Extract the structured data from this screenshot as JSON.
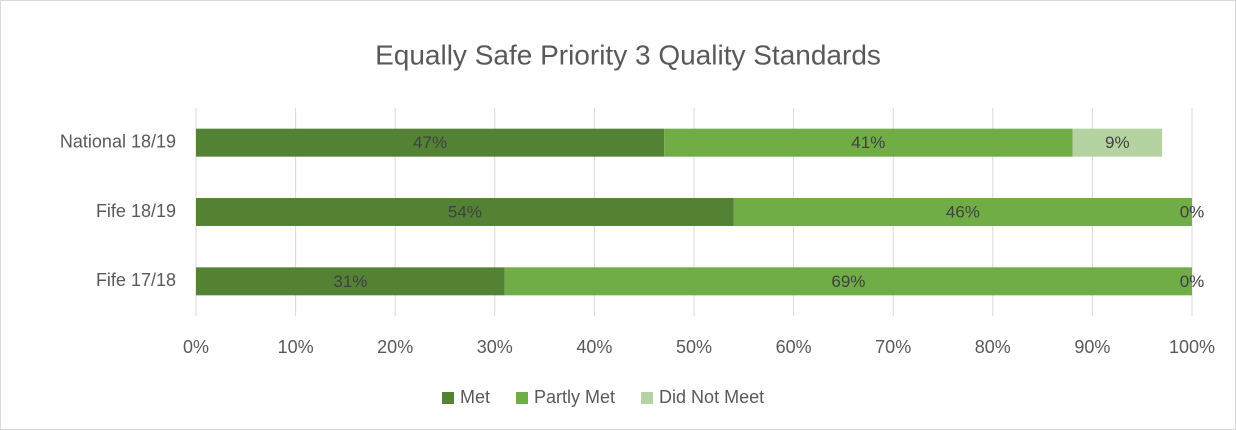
{
  "chart_data": {
    "type": "stacked-bar",
    "orientation": "horizontal",
    "title": "Equally Safe Priority 3 Quality Standards",
    "categories": [
      "National 18/19",
      "Fife 18/19",
      "Fife 17/18"
    ],
    "series": [
      {
        "name": "Met",
        "color": "#548235",
        "values": [
          47,
          54,
          31
        ],
        "value_labels": [
          "47%",
          "54%",
          "31%"
        ]
      },
      {
        "name": "Partly Met",
        "color": "#70ad47",
        "values": [
          41,
          46,
          69
        ],
        "value_labels": [
          "41%",
          "46%",
          "69%"
        ]
      },
      {
        "name": "Did Not Meet",
        "color": "#b4d3a0",
        "values": [
          9,
          0,
          0
        ],
        "value_labels": [
          "9%",
          "0%",
          "0%"
        ]
      }
    ],
    "xlim": [
      0,
      100
    ],
    "xticks": [
      {
        "value": 0,
        "label": "0%"
      },
      {
        "value": 10,
        "label": "10%"
      },
      {
        "value": 20,
        "label": "20%"
      },
      {
        "value": 30,
        "label": "30%"
      },
      {
        "value": 40,
        "label": "40%"
      },
      {
        "value": 50,
        "label": "50%"
      },
      {
        "value": 60,
        "label": "60%"
      },
      {
        "value": 70,
        "label": "70%"
      },
      {
        "value": 80,
        "label": "80%"
      },
      {
        "value": 90,
        "label": "90%"
      },
      {
        "value": 100,
        "label": "100%"
      }
    ],
    "grid": true,
    "legend": "bottom"
  }
}
